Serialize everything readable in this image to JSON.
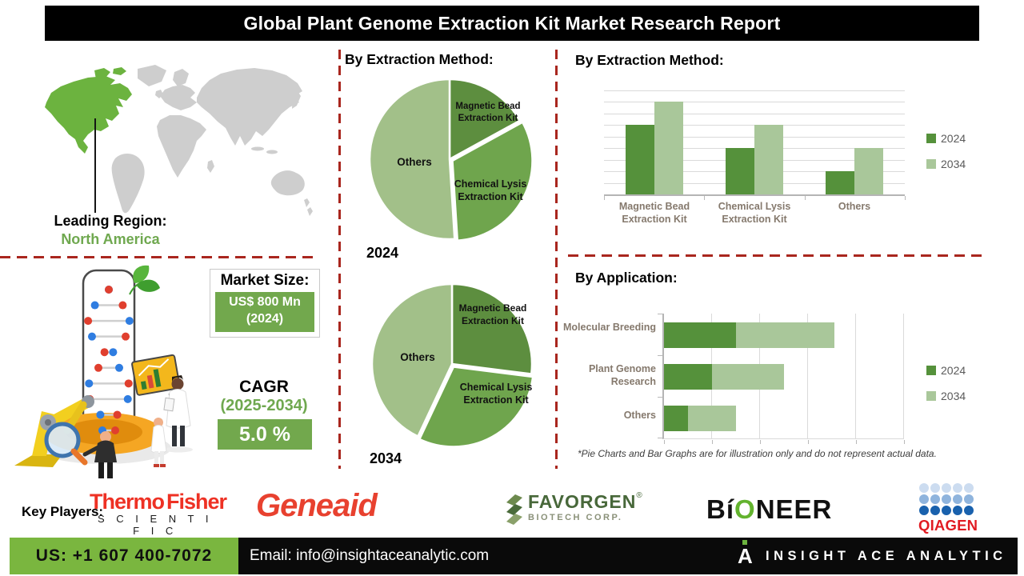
{
  "header": {
    "title": "Global Plant Genome Extraction Kit Market Research Report"
  },
  "map": {
    "region_label": "Leading Region:",
    "region_value": "North America"
  },
  "market_size": {
    "label": "Market Size:",
    "value": "US$ 800 Mn",
    "year": "(2024)"
  },
  "cagr": {
    "label": "CAGR",
    "period": "(2025-2034)",
    "value": "5.0 %"
  },
  "chart_data": [
    {
      "type": "pie",
      "title": "By Extraction Method:",
      "caption": "2024",
      "slices": [
        {
          "label": "Magnetic Bead Extraction Kit",
          "value": 17
        },
        {
          "label": "Chemical Lysis Extraction Kit",
          "value": 32
        },
        {
          "label": "Others",
          "value": 51
        }
      ],
      "colors": [
        "#5d8e3f",
        "#6fa54d",
        "#a2c089"
      ]
    },
    {
      "type": "pie",
      "title": "By Extraction Method:",
      "caption": "2034",
      "slices": [
        {
          "label": "Magnetic Bead Extraction Kit",
          "value": 27
        },
        {
          "label": "Chemical Lysis Extraction Kit",
          "value": 30
        },
        {
          "label": "Others",
          "value": 43
        }
      ],
      "colors": [
        "#5d8e3f",
        "#6fa54d",
        "#a2c089"
      ]
    },
    {
      "type": "bar",
      "title": "By Extraction Method:",
      "categories": [
        "Magnetic Bead Extraction Kit",
        "Chemical Lysis Extraction Kit",
        "Others"
      ],
      "series": [
        {
          "name": "2024",
          "color": "#55913b",
          "values": [
            6,
            4,
            2
          ]
        },
        {
          "name": "2034",
          "color": "#a9c79a",
          "values": [
            8,
            6,
            4
          ]
        }
      ],
      "ylim": [
        0,
        9
      ],
      "grid": true,
      "legend_position": "right"
    },
    {
      "type": "bar",
      "orientation": "horizontal",
      "stacked": true,
      "title": "By Application:",
      "categories": [
        "Molecular Breeding",
        "Plant Genome Research",
        "Others"
      ],
      "series": [
        {
          "name": "2024",
          "color": "#55913b",
          "values": [
            1.5,
            1.0,
            0.5
          ]
        },
        {
          "name": "2034",
          "color": "#a9c79a",
          "values": [
            2.05,
            1.5,
            1.0
          ]
        }
      ],
      "xlim": [
        0,
        5
      ],
      "grid": true,
      "legend_position": "right"
    }
  ],
  "footnote": "*Pie Charts and Bar Graphs are for illustration only and do not represent actual data.",
  "key_players": {
    "label": "Key Players:",
    "players": [
      "Thermo Fisher Scientific",
      "Geneaid",
      "Favorgen Biotech Corp.",
      "Bioneer",
      "Qiagen"
    ]
  },
  "logos": {
    "thermo1": "Thermo",
    "thermo2": "Fisher",
    "scientific": "S C I E N T I F I C",
    "geneaid": "Geneaid",
    "favorgen": "FAVORGEN",
    "favorgen_reg": "®",
    "favorgen_sub": "BIOTECH CORP.",
    "bioneer_b": "B",
    "bioneer_i": "í",
    "bioneer_o": "O",
    "bioneer_rest": "NEER",
    "qiagen": "QIAGEN"
  },
  "footer": {
    "phone": "US: +1 607 400-7072",
    "email": "Email: info@insightaceanalytic.com",
    "logo_letter": "A",
    "brand": "INSIGHT ACE ANALYTIC"
  }
}
